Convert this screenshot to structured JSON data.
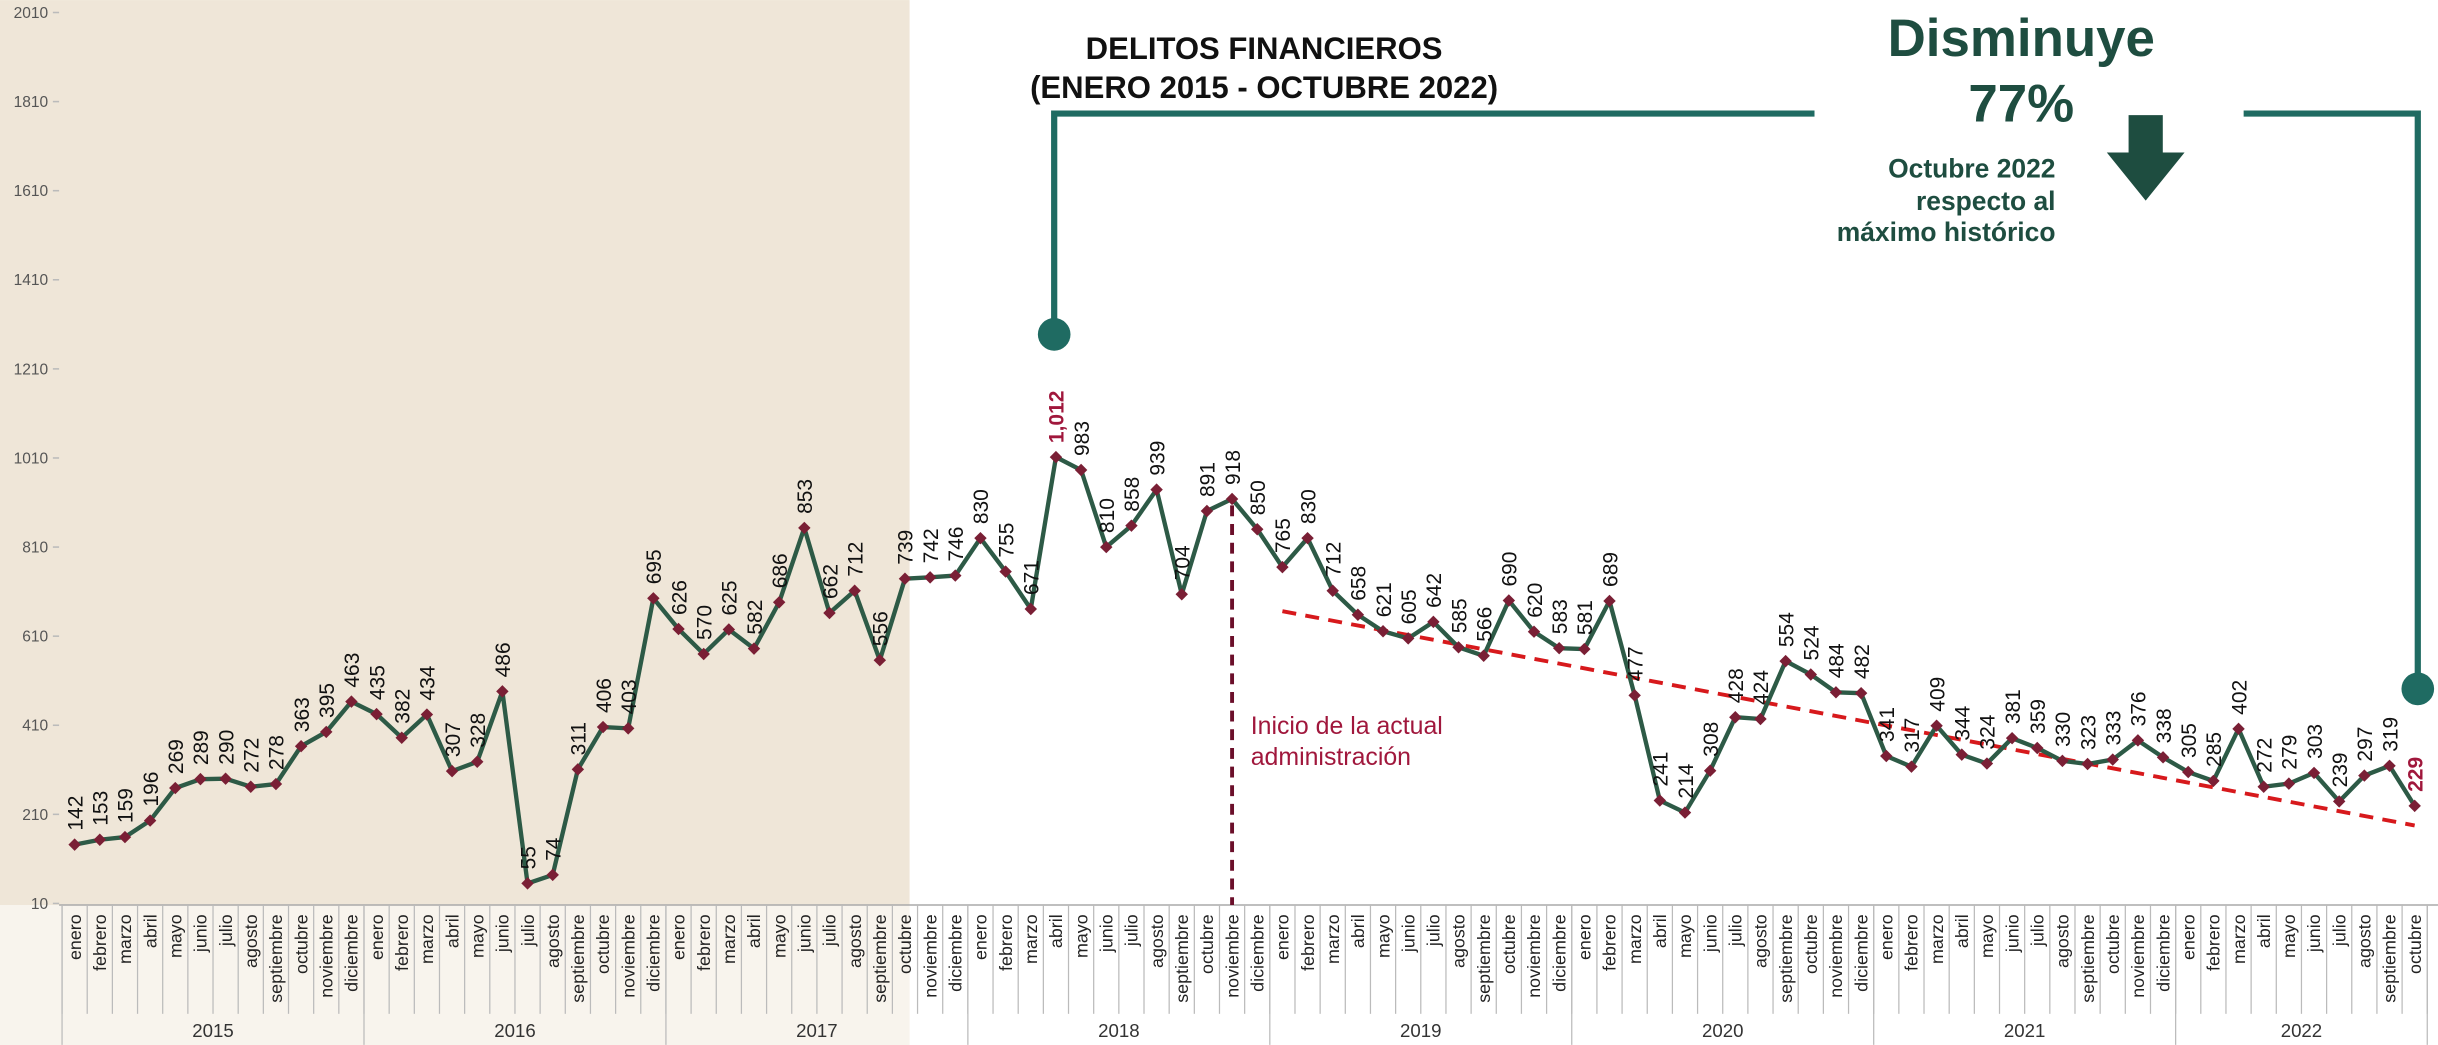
{
  "chart_data": {
    "type": "line",
    "title": [
      "DELITOS FINANCIEROS",
      "(ENERO 2015 - OCTUBRE 2022)"
    ],
    "headline": [
      "Disminuye",
      "77%"
    ],
    "headline_note": [
      "Octubre 2022",
      "respecto al",
      "máximo histórico"
    ],
    "annotation": {
      "text": [
        "Inicio de la actual",
        "administración"
      ],
      "category_index": 46
    },
    "categories": [
      "enero",
      "febrero",
      "marzo",
      "abril",
      "mayo",
      "junio",
      "julio",
      "agosto",
      "septiembre",
      "octubre",
      "noviembre",
      "diciembre",
      "enero",
      "febrero",
      "marzo",
      "abril",
      "mayo",
      "junio",
      "julio",
      "agosto",
      "septiembre",
      "octubre",
      "noviembre",
      "diciembre",
      "enero",
      "febrero",
      "marzo",
      "abril",
      "mayo",
      "junio",
      "julio",
      "agosto",
      "septiembre",
      "octubre",
      "noviembre",
      "diciembre",
      "enero",
      "febrero",
      "marzo",
      "abril",
      "mayo",
      "junio",
      "julio",
      "agosto",
      "septiembre",
      "octubre",
      "noviembre",
      "diciembre",
      "enero",
      "febrero",
      "marzo",
      "abril",
      "mayo",
      "junio",
      "julio",
      "agosto",
      "septiembre",
      "octubre",
      "noviembre",
      "diciembre",
      "enero",
      "febrero",
      "marzo",
      "abril",
      "mayo",
      "junio",
      "julio",
      "agosto",
      "septiembre",
      "octubre",
      "noviembre",
      "diciembre",
      "enero",
      "febrero",
      "marzo",
      "abril",
      "mayo",
      "junio",
      "julio",
      "agosto",
      "septiembre",
      "octubre",
      "noviembre",
      "diciembre",
      "enero",
      "febrero",
      "marzo",
      "abril",
      "mayo",
      "junio",
      "julio",
      "agosto",
      "septiembre",
      "octubre"
    ],
    "years": [
      "2015",
      "2016",
      "2017",
      "2018",
      "2019",
      "2020",
      "2021",
      "2022"
    ],
    "values": [
      142,
      153,
      159,
      196,
      269,
      289,
      290,
      272,
      278,
      363,
      395,
      463,
      435,
      382,
      434,
      307,
      328,
      486,
      55,
      74,
      311,
      406,
      403,
      695,
      626,
      570,
      625,
      582,
      686,
      853,
      662,
      712,
      556,
      739,
      742,
      746,
      830,
      755,
      671,
      1012,
      983,
      810,
      858,
      939,
      704,
      891,
      918,
      850,
      765,
      830,
      712,
      658,
      621,
      605,
      642,
      585,
      566,
      690,
      620,
      583,
      581,
      689,
      477,
      241,
      214,
      308,
      428,
      424,
      554,
      524,
      484,
      482,
      341,
      317,
      409,
      344,
      324,
      381,
      359,
      330,
      323,
      333,
      376,
      338,
      305,
      285,
      402,
      272,
      279,
      303,
      239,
      297,
      319,
      229
    ],
    "value_labels": [
      "142",
      "153",
      "159",
      "196",
      "269",
      "289",
      "290",
      "272",
      "278",
      "363",
      "395",
      "463",
      "435",
      "382",
      "434",
      "307",
      "328",
      "486",
      "55",
      "74",
      "311",
      "406",
      "403",
      "695",
      "626",
      "570",
      "625",
      "582",
      "686",
      "853",
      "662",
      "712",
      "556",
      "739",
      "742",
      "746",
      "830",
      "755",
      "671",
      "1,012",
      "983",
      "810",
      "858",
      "939",
      "704",
      "891",
      "918",
      "850",
      "765",
      "830",
      "712",
      "658",
      "621",
      "605",
      "642",
      "585",
      "566",
      "690",
      "620",
      "583",
      "581",
      "689",
      "477",
      "241",
      "214",
      "308",
      "428",
      "424",
      "554",
      "524",
      "484",
      "482",
      "341",
      "317",
      "409",
      "344",
      "324",
      "381",
      "359",
      "330",
      "323",
      "333",
      "376",
      "338",
      "305",
      "285",
      "402",
      "272",
      "279",
      "303",
      "239",
      "297",
      "319",
      "229"
    ],
    "color": "#2d5a46",
    "marker_color": "#7a1f35",
    "highlight_color": "#a0173c",
    "trend": {
      "x": [
        48,
        93
      ],
      "values": [
        666,
        185
      ],
      "color": "#d7191c"
    },
    "ylim": [
      10,
      2010
    ],
    "yticks": [
      10,
      210,
      410,
      610,
      810,
      1010,
      1210,
      1410,
      1610,
      1810,
      2010
    ]
  }
}
